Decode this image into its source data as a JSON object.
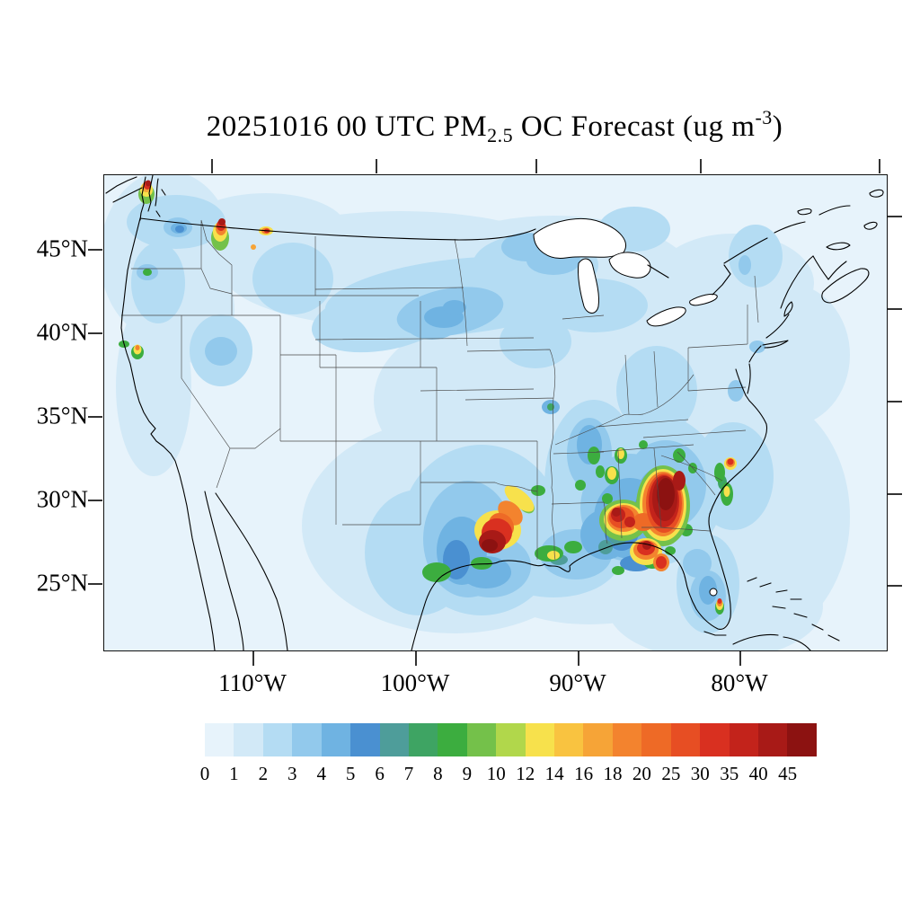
{
  "title": {
    "part1": "20251016 00 UTC PM",
    "subscript": "2.5",
    "part2": " OC Forecast (ug m",
    "superscript": "-3",
    "part3": ")"
  },
  "map": {
    "y_axis": {
      "labels": [
        "45°N",
        "40°N",
        "35°N",
        "30°N",
        "25°N"
      ]
    },
    "x_axis": {
      "labels": [
        "110°W",
        "100°W",
        "90°W",
        "80°W"
      ]
    }
  },
  "colorbar": {
    "labels": [
      "0",
      "1",
      "2",
      "3",
      "4",
      "5",
      "6",
      "7",
      "8",
      "9",
      "10",
      "12",
      "14",
      "16",
      "18",
      "20",
      "25",
      "30",
      "35",
      "40",
      "45"
    ],
    "colors": [
      "#e7f3fb",
      "#d2e9f7",
      "#b4dcf3",
      "#92c9ec",
      "#6fb3e2",
      "#4a90d1",
      "#4e9d9a",
      "#3ea463",
      "#3cad3f",
      "#74c14a",
      "#b1d74b",
      "#f7e14c",
      "#f9c340",
      "#f6a437",
      "#f3832e",
      "#ee6a26",
      "#e74e23",
      "#d93020",
      "#c3231b",
      "#a81a17",
      "#8c1211"
    ]
  },
  "chart_data": {
    "type": "heatmap",
    "subtype": "filled-contour-forecast-map",
    "title": "20251016 00 UTC PM2.5 OC Forecast (ug m-3)",
    "variable": "PM2.5 organic carbon",
    "run_date": "20251016",
    "run_time": "00 UTC",
    "units": "ug m-3",
    "region": "Continental United States",
    "lat_ticks_deg_n": [
      45,
      40,
      35,
      30,
      25
    ],
    "lon_ticks_deg_w": [
      110,
      100,
      90,
      80
    ],
    "contour_levels": [
      0,
      1,
      2,
      3,
      4,
      5,
      6,
      7,
      8,
      9,
      10,
      12,
      14,
      16,
      18,
      20,
      25,
      30,
      35,
      40,
      45
    ],
    "legend_position": "bottom",
    "background_field": "0-2 ug m-3 over most of the domain; 2-6 ug m-3 over the northern plains, upper midwest, east Texas, lower Mississippi valley and Gulf coast",
    "hotspots": [
      {
        "region": "NW Washington (Seattle / Puget Sound)",
        "approx_peak": ">45"
      },
      {
        "region": "NW Montana",
        "approx_peak": ">45"
      },
      {
        "region": "W Montana secondary spot",
        "approx_peak": "~30"
      },
      {
        "region": "Northern California",
        "approx_peak": "~16"
      },
      {
        "region": "E Texas / W Louisiana border",
        "approx_peak": ">45"
      },
      {
        "region": "Alabama",
        "approx_peak": ">45"
      },
      {
        "region": "Georgia (largest area)",
        "approx_peak": ">45"
      },
      {
        "region": "Florida panhandle coast",
        "approx_peak": "~35"
      },
      {
        "region": "Tennessee spots",
        "approx_peak": "~14"
      },
      {
        "region": "Coastal Carolinas",
        "approx_peak": "~30 (small dot)"
      },
      {
        "region": "SE Florida coast",
        "approx_peak": "~30"
      }
    ],
    "render_blobs": [
      [
        1,
        70,
        90,
        75,
        95
      ],
      [
        1,
        55,
        235,
        42,
        100
      ],
      [
        1,
        330,
        105,
        200,
        65
      ],
      [
        1,
        500,
        120,
        160,
        75
      ],
      [
        1,
        620,
        240,
        130,
        90
      ],
      [
        1,
        700,
        120,
        90,
        55
      ],
      [
        1,
        420,
        250,
        120,
        90
      ],
      [
        1,
        390,
        390,
        170,
        120
      ],
      [
        1,
        540,
        380,
        170,
        120
      ],
      [
        1,
        620,
        350,
        130,
        110
      ],
      [
        1,
        720,
        380,
        110,
        140
      ],
      [
        1,
        180,
        60,
        90,
        40
      ],
      [
        1,
        680,
        480,
        120,
        60
      ],
      [
        1,
        760,
        200,
        70,
        80
      ],
      [
        1,
        105,
        150,
        40,
        60
      ],
      [
        2,
        395,
        135,
        150,
        42,
        -6
      ],
      [
        2,
        310,
        160,
        80,
        35,
        -10
      ],
      [
        2,
        480,
        100,
        70,
        35
      ],
      [
        2,
        545,
        145,
        60,
        30
      ],
      [
        2,
        420,
        395,
        90,
        95
      ],
      [
        2,
        350,
        420,
        60,
        70
      ],
      [
        2,
        545,
        345,
        55,
        95
      ],
      [
        2,
        610,
        350,
        80,
        85
      ],
      [
        2,
        80,
        52,
        55,
        30
      ],
      [
        2,
        500,
        425,
        75,
        45
      ],
      [
        2,
        615,
        240,
        45,
        50
      ],
      [
        2,
        672,
        455,
        35,
        55
      ],
      [
        2,
        700,
        335,
        45,
        60
      ],
      [
        2,
        60,
        120,
        30,
        45
      ],
      [
        2,
        130,
        195,
        35,
        40
      ],
      [
        2,
        210,
        115,
        45,
        40
      ],
      [
        2,
        480,
        185,
        40,
        30
      ],
      [
        2,
        725,
        90,
        30,
        35
      ],
      [
        2,
        590,
        60,
        40,
        25
      ],
      [
        3,
        385,
        152,
        60,
        26,
        -10
      ],
      [
        3,
        470,
        80,
        28,
        16
      ],
      [
        3,
        500,
        95,
        30,
        16
      ],
      [
        3,
        405,
        405,
        50,
        65
      ],
      [
        3,
        430,
        435,
        45,
        35
      ],
      [
        3,
        585,
        370,
        55,
        60
      ],
      [
        3,
        625,
        345,
        45,
        50
      ],
      [
        3,
        82,
        58,
        16,
        11
      ],
      [
        3,
        727,
        191,
        9,
        7
      ],
      [
        3,
        703,
        240,
        9,
        12
      ],
      [
        3,
        713,
        100,
        7,
        11
      ],
      [
        3,
        525,
        422,
        40,
        28
      ],
      [
        3,
        672,
        468,
        20,
        28
      ],
      [
        3,
        660,
        432,
        16,
        16
      ],
      [
        3,
        540,
        310,
        25,
        40
      ],
      [
        3,
        365,
        165,
        30,
        18
      ],
      [
        3,
        130,
        196,
        18,
        16
      ],
      [
        3,
        48,
        108,
        12,
        9
      ],
      [
        4,
        378,
        158,
        22,
        12
      ],
      [
        4,
        390,
        147,
        13,
        8
      ],
      [
        4,
        398,
        418,
        28,
        38
      ],
      [
        4,
        425,
        442,
        28,
        18
      ],
      [
        4,
        585,
        382,
        40,
        45
      ],
      [
        4,
        558,
        400,
        28,
        28
      ],
      [
        4,
        83,
        59,
        9,
        6
      ],
      [
        4,
        497,
        258,
        10,
        8
      ],
      [
        4,
        620,
        360,
        28,
        35
      ],
      [
        4,
        672,
        462,
        10,
        16
      ],
      [
        4,
        540,
        300,
        14,
        22
      ],
      [
        5,
        392,
        428,
        15,
        22
      ],
      [
        5,
        576,
        392,
        20,
        26
      ],
      [
        5,
        604,
        372,
        14,
        20
      ],
      [
        5,
        592,
        432,
        18,
        9
      ],
      [
        5,
        84,
        60,
        5,
        4
      ],
      [
        6,
        572,
        396,
        12,
        16
      ],
      [
        6,
        610,
        382,
        9,
        12
      ],
      [
        6,
        506,
        428,
        10,
        6
      ],
      [
        6,
        558,
        414,
        8,
        8
      ],
      [
        7,
        497,
        258,
        4,
        4
      ],
      [
        7,
        688,
        342,
        5,
        8
      ],
      [
        8,
        370,
        442,
        16,
        11
      ],
      [
        8,
        420,
        432,
        12,
        7
      ],
      [
        8,
        483,
        351,
        8,
        6
      ],
      [
        8,
        495,
        421,
        16,
        9
      ],
      [
        8,
        522,
        414,
        10,
        7
      ],
      [
        8,
        545,
        312,
        7,
        10
      ],
      [
        8,
        552,
        330,
        5,
        7
      ],
      [
        8,
        640,
        312,
        7,
        8
      ],
      [
        8,
        655,
        326,
        5,
        6
      ],
      [
        8,
        530,
        345,
        6,
        6
      ],
      [
        8,
        610,
        432,
        9,
        6
      ],
      [
        8,
        572,
        440,
        7,
        5
      ],
      [
        8,
        600,
        300,
        5,
        5
      ],
      [
        8,
        560,
        360,
        6,
        6
      ],
      [
        8,
        648,
        395,
        7,
        7
      ],
      [
        8,
        630,
        418,
        6,
        5
      ],
      [
        8,
        565,
        334,
        8,
        10
      ],
      [
        8,
        575,
        312,
        7,
        9
      ],
      [
        8,
        685,
        331,
        6,
        11
      ],
      [
        8,
        693,
        355,
        7,
        13
      ],
      [
        8,
        685,
        481,
        5,
        8
      ],
      [
        8,
        22,
        188,
        6,
        4
      ],
      [
        8,
        37,
        197,
        7,
        8
      ],
      [
        8,
        48,
        108,
        5,
        4
      ],
      [
        9,
        47,
        21,
        9,
        11
      ],
      [
        9,
        129,
        70,
        10,
        14
      ],
      [
        9,
        470,
        368,
        10,
        7,
        40
      ],
      [
        9,
        622,
        368,
        30,
        45
      ],
      [
        9,
        578,
        384,
        27,
        23
      ],
      [
        11,
        47,
        16,
        7,
        8
      ],
      [
        11,
        129,
        63,
        8,
        11
      ],
      [
        11,
        180,
        62,
        8,
        5
      ],
      [
        11,
        37,
        194,
        4.5,
        5.5
      ],
      [
        11,
        462,
        360,
        20,
        9,
        40
      ],
      [
        11,
        500,
        423,
        7,
        5
      ],
      [
        11,
        438,
        395,
        26,
        22
      ],
      [
        11,
        565,
        332,
        5,
        7
      ],
      [
        11,
        575,
        310,
        4,
        6
      ],
      [
        11,
        622,
        367,
        26,
        40
      ],
      [
        11,
        578,
        383,
        22,
        18
      ],
      [
        11,
        603,
        419,
        18,
        15
      ],
      [
        11,
        697,
        321,
        7,
        7
      ],
      [
        11,
        693,
        352,
        3.5,
        6
      ],
      [
        11,
        685,
        478,
        4,
        6
      ],
      [
        13,
        47,
        13,
        5,
        6
      ],
      [
        13,
        166,
        80,
        3,
        3
      ],
      [
        14,
        130,
        59,
        6,
        8
      ],
      [
        14,
        180,
        62,
        5,
        3.5
      ],
      [
        14,
        37,
        192,
        2.5,
        3
      ],
      [
        14,
        452,
        376,
        16,
        11,
        45
      ],
      [
        14,
        622,
        366,
        23,
        36
      ],
      [
        14,
        578,
        382,
        18,
        15
      ],
      [
        14,
        603,
        417,
        14,
        11
      ],
      [
        14,
        620,
        431,
        9,
        10
      ],
      [
        14,
        697,
        320,
        5,
        5
      ],
      [
        14,
        685,
        476,
        3,
        4
      ],
      [
        15,
        442,
        390,
        15,
        13,
        45
      ],
      [
        15,
        600,
        386,
        12,
        10
      ],
      [
        16,
        623,
        365,
        20,
        33
      ],
      [
        16,
        576,
        381,
        14,
        12
      ],
      [
        17,
        48,
        11,
        4,
        5
      ],
      [
        17,
        130,
        56,
        5,
        6
      ],
      [
        17,
        181,
        62,
        3,
        2.5
      ],
      [
        17,
        437,
        398,
        17,
        16
      ],
      [
        17,
        603,
        415,
        10,
        8
      ],
      [
        17,
        620,
        431,
        6,
        7
      ],
      [
        17,
        697,
        319,
        3.5,
        3.5
      ],
      [
        17,
        685,
        474,
        2.5,
        3
      ],
      [
        18,
        623,
        363,
        17,
        29
      ],
      [
        18,
        572,
        378,
        8,
        8
      ],
      [
        18,
        585,
        386,
        6,
        6
      ],
      [
        19,
        49,
        9,
        3,
        3.5
      ],
      [
        19,
        131,
        52,
        4,
        4
      ],
      [
        19,
        432,
        408,
        15,
        13
      ],
      [
        19,
        624,
        360,
        14,
        25
      ],
      [
        19,
        640,
        340,
        7,
        11
      ],
      [
        19,
        570,
        375,
        5,
        5
      ],
      [
        19,
        604,
        412,
        5,
        5
      ],
      [
        20,
        429,
        412,
        9,
        7
      ],
      [
        20,
        625,
        355,
        10,
        18
      ]
    ]
  }
}
